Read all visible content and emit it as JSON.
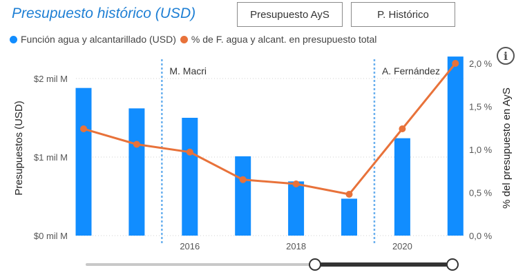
{
  "header": {
    "title": "Presupuesto histórico (USD)",
    "buttons": [
      "Presupuesto AyS",
      "P. Histórico"
    ]
  },
  "colors": {
    "bar": "#118dff",
    "line": "#e8723a",
    "title": "#1e7fd4",
    "divider": "#6ab0ee"
  },
  "info_icon": "info-icon",
  "chart_data": {
    "type": "bar",
    "x": [
      2014,
      2015,
      2016,
      2017,
      2018,
      2019,
      2020,
      2021
    ],
    "series": [
      {
        "name": "Función agua y alcantarillado (USD)",
        "type": "bar",
        "axis": "left",
        "values": [
          1.88,
          1.62,
          1.5,
          1.01,
          0.69,
          0.47,
          1.24,
          2.28
        ]
      },
      {
        "name": "% de F. agua y alcant. en presupuesto total",
        "type": "line",
        "axis": "right",
        "values": [
          1.24,
          1.06,
          0.97,
          0.65,
          0.6,
          0.48,
          1.24,
          2.0
        ]
      }
    ],
    "x_tick_labels": [
      "2016",
      "2018",
      "2020"
    ],
    "y_left": {
      "label": "Presupuestos (USD)",
      "ticks": [
        "$0 mil M",
        "$1 mil M",
        "$2 mil M"
      ],
      "range": [
        0,
        2.5
      ]
    },
    "y_right": {
      "label": "% del presupuesto en AyS",
      "ticks": [
        "0,0 %",
        "0,5 %",
        "1,0 %",
        "1,5 %",
        "2,0 %"
      ],
      "range": [
        0,
        2.0
      ]
    },
    "annotations": [
      {
        "label": "M. Macri",
        "at_year": 2015.5
      },
      {
        "label": "A. Fernández",
        "at_year": 2019.5
      }
    ],
    "legend_position": "top-left",
    "grid": "horizontal-dotted",
    "range_slider": {
      "start_fraction": 0.627,
      "end_fraction": 1.0
    }
  }
}
